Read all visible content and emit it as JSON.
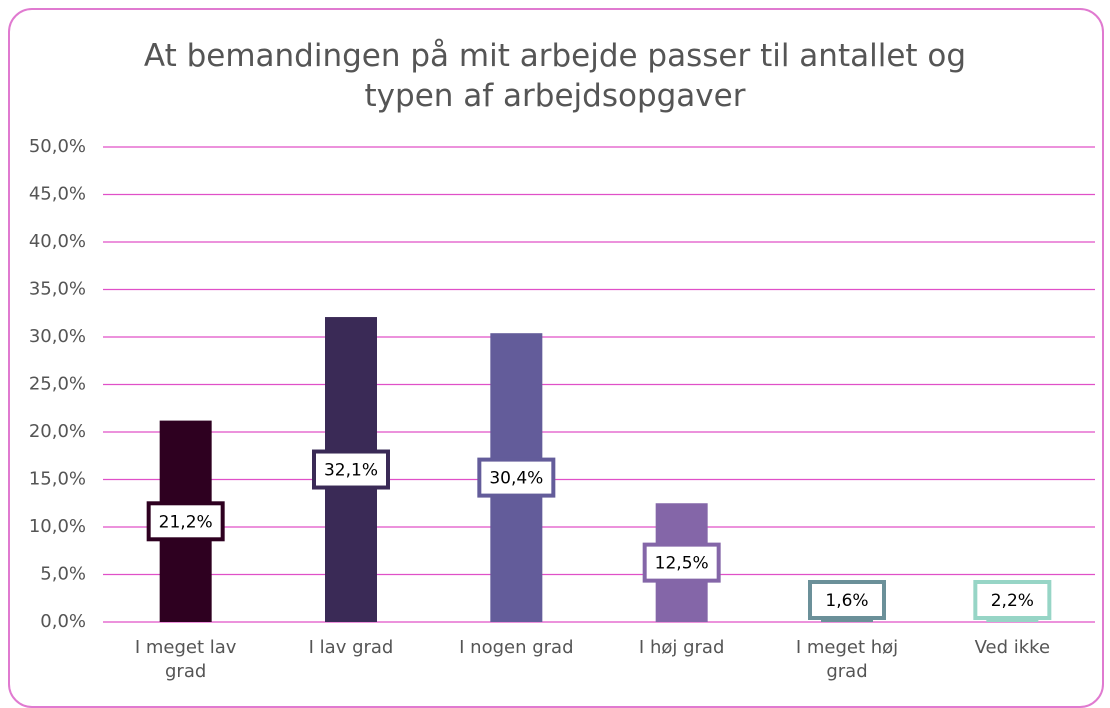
{
  "chart_data": {
    "type": "bar",
    "title": "At bemandingen på mit arbejde passer til antallet og typen af arbejdsopgaver",
    "categories": [
      "I meget lav grad",
      "I lav grad",
      "I nogen grad",
      "I høj grad",
      "I meget høj grad",
      "Ved ikke"
    ],
    "values": [
      21.2,
      32.1,
      30.4,
      12.5,
      1.6,
      2.2
    ],
    "value_labels": [
      "21,2%",
      "32,1%",
      "30,4%",
      "12,5%",
      "1,6%",
      "2,2%"
    ],
    "colors": [
      "#2e0020",
      "#3a2a56",
      "#635c9a",
      "#8466a8",
      "#6b9099",
      "#97d5c6"
    ],
    "ylim": [
      0,
      50
    ],
    "yticks": [
      {
        "value": 0,
        "label": "0,0%"
      },
      {
        "value": 5,
        "label": "5,0%"
      },
      {
        "value": 10,
        "label": "10,0%"
      },
      {
        "value": 15,
        "label": "15,0%"
      },
      {
        "value": 20,
        "label": "20,0%"
      },
      {
        "value": 25,
        "label": "25,0%"
      },
      {
        "value": 30,
        "label": "30,0%"
      },
      {
        "value": 35,
        "label": "35,0%"
      },
      {
        "value": 40,
        "label": "40,0%"
      },
      {
        "value": 45,
        "label": "45,0%"
      },
      {
        "value": 50,
        "label": "50,0%"
      }
    ],
    "grid": true
  }
}
